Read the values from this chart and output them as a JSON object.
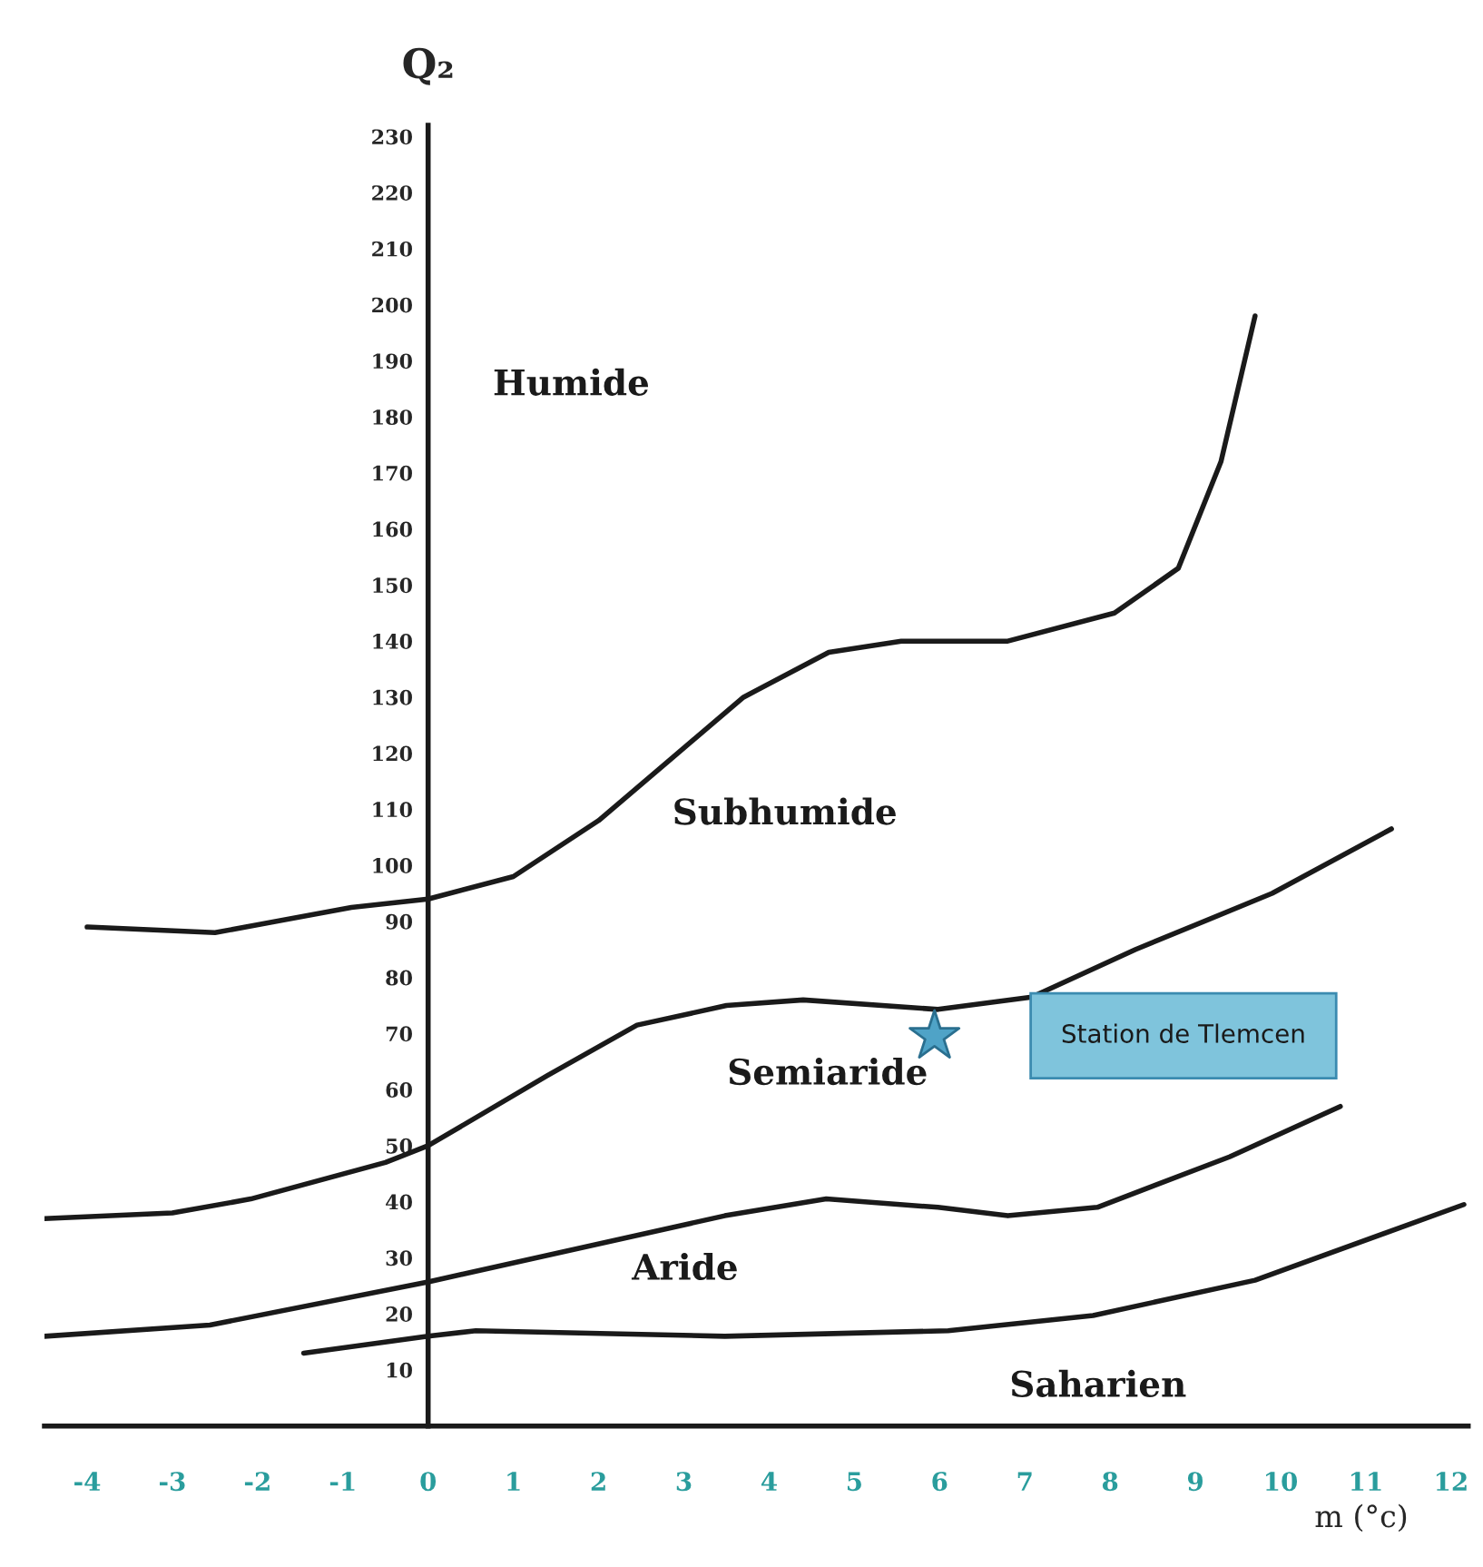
{
  "chart_data": {
    "type": "line",
    "xlabel": "m (°c)",
    "ylabel": "Q₂",
    "xlim": [
      -4.5,
      12.2
    ],
    "ylim": [
      0,
      232
    ],
    "xticks": [
      -4,
      -3,
      -2,
      -1,
      0,
      1,
      2,
      3,
      4,
      5,
      6,
      7,
      8,
      9,
      10,
      11,
      12
    ],
    "yticks": [
      10,
      20,
      30,
      40,
      50,
      60,
      70,
      80,
      90,
      100,
      110,
      120,
      130,
      140,
      150,
      160,
      170,
      180,
      190,
      200,
      210,
      220,
      230
    ],
    "grid": false,
    "marker": "none",
    "line_style": "solid",
    "series": [
      {
        "color": "#1a1a1a",
        "x": [
          -4.0,
          -2.5,
          -0.9,
          0,
          1,
          2,
          2.85,
          3.7,
          4.7,
          5.55,
          6.8,
          8.05,
          8.8,
          9.3,
          9.7
        ],
        "values": [
          89,
          88,
          92.5,
          94,
          98,
          108,
          119,
          130,
          138,
          140,
          140,
          145,
          153,
          172,
          198
        ]
      },
      {
        "color": "#1a1a1a",
        "x": [
          -4.5,
          -3,
          -2.08,
          -0.5,
          0,
          1.4,
          2.45,
          3.5,
          4.4,
          5.98,
          7.08,
          8.3,
          9.9,
          11.3
        ],
        "values": [
          37,
          38,
          40.5,
          47,
          50,
          62.5,
          71.5,
          75,
          76,
          74.3,
          76.5,
          85,
          95,
          106.5
        ]
      },
      {
        "color": "#1a1a1a",
        "x": [
          -4.5,
          -2.56,
          0,
          3.48,
          4.67,
          5.98,
          6.8,
          7.85,
          9.4,
          10.7
        ],
        "values": [
          16,
          18,
          25.7,
          37.5,
          40.5,
          39,
          37.5,
          39,
          48,
          57
        ]
      },
      {
        "color": "#1a1a1a",
        "x": [
          -1.46,
          0,
          0.56,
          3.48,
          6.1,
          7.8,
          9.7,
          12.15
        ],
        "values": [
          13,
          16,
          17,
          16,
          17,
          19.7,
          26,
          39.5
        ]
      },
      {
        "type": "scatter",
        "color": "#4fa3c7",
        "marker": "star",
        "x": [
          5.94
        ],
        "values": [
          69.5
        ]
      }
    ],
    "annotations": [
      "Humide",
      "Subhumide",
      "Semiaride",
      "Aride",
      "Saharien",
      "Station de Tlemcen"
    ]
  }
}
